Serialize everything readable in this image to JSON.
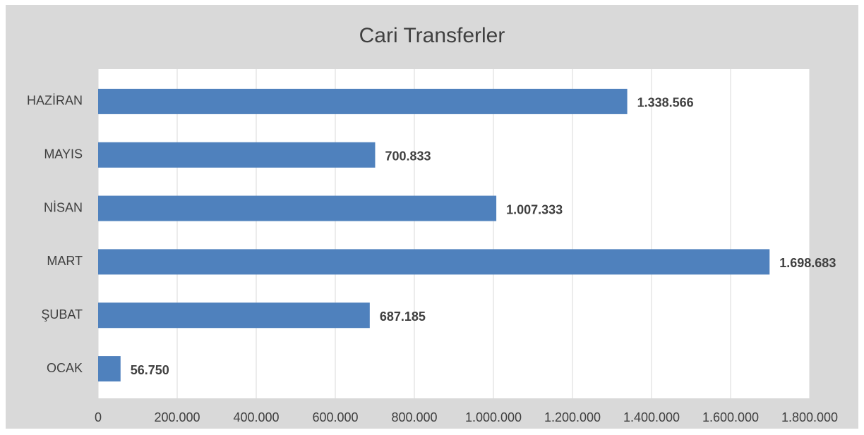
{
  "chart_data": {
    "type": "bar",
    "orientation": "horizontal",
    "title": "Cari Transferler",
    "categories": [
      "OCAK",
      "ŞUBAT",
      "MART",
      "NİSAN",
      "MAYIS",
      "HAZİRAN"
    ],
    "values": [
      56750,
      687185,
      1698683,
      1007333,
      700833,
      1338566
    ],
    "value_labels": [
      "56.750",
      "687.185",
      "1.698.683",
      "1.007.333",
      "700.833",
      "1.338.566"
    ],
    "color": "#4f81bd",
    "xlim": [
      0,
      1800000
    ],
    "xticks": [
      0,
      {
        "value": 200000,
        "label": "200.000"
      },
      {
        "value": 400000,
        "label": "400.000"
      },
      {
        "value": 600000,
        "label": "600.000"
      },
      {
        "value": 800000,
        "label": "800.000"
      },
      {
        "value": 1000000,
        "label": "1.000.000"
      },
      {
        "value": 1200000,
        "label": "1.200.000"
      },
      {
        "value": 1400000,
        "label": "1.400.000"
      },
      {
        "value": 1600000,
        "label": "1.600.000"
      },
      {
        "value": 1800000,
        "label": "1.800.000"
      }
    ],
    "grid": true
  }
}
